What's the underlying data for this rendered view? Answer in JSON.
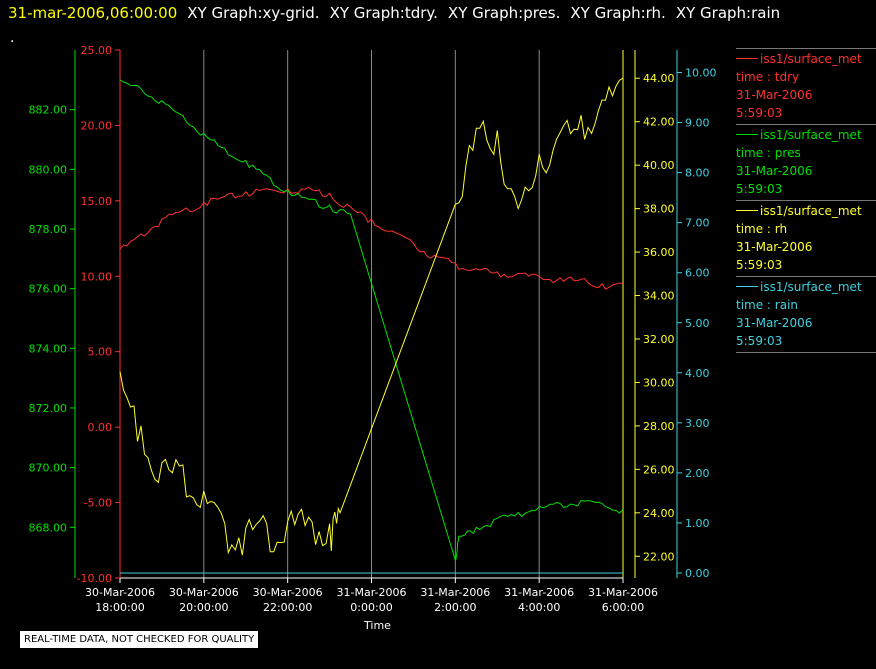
{
  "header": {
    "timestamp": "31-mar-2006,06:00:00",
    "graphs": [
      "XY Graph:xy-grid.",
      "XY Graph:tdry.",
      "XY Graph:pres.",
      "XY Graph:rh.",
      "XY Graph:rain"
    ],
    "second_line": "."
  },
  "legend": [
    {
      "name": "iss1/surface_met",
      "var": "time : tdry",
      "date": "31-Mar-2006",
      "time": "5:59:03",
      "color": "#ff3030"
    },
    {
      "name": "iss1/surface_met",
      "var": "time : pres",
      "date": "31-Mar-2006",
      "time": "5:59:03",
      "color": "#00e000"
    },
    {
      "name": "iss1/surface_met",
      "var": "time : rh",
      "date": "31-Mar-2006",
      "time": "5:59:03",
      "color": "#ffff30"
    },
    {
      "name": "iss1/surface_met",
      "var": "time : rain",
      "date": "31-Mar-2006",
      "time": "5:59:03",
      "color": "#40d0e0"
    }
  ],
  "disclaimer": "REAL-TIME DATA, NOT CHECKED FOR QUALITY",
  "chart_data": {
    "type": "line",
    "xlabel": "Time",
    "x_ticks": [
      {
        "date": "30-Mar-2006",
        "time": "18:00:00"
      },
      {
        "date": "30-Mar-2006",
        "time": "20:00:00"
      },
      {
        "date": "30-Mar-2006",
        "time": "22:00:00"
      },
      {
        "date": "31-Mar-2006",
        "time": "0:00:00"
      },
      {
        "date": "31-Mar-2006",
        "time": "2:00:00"
      },
      {
        "date": "31-Mar-2006",
        "time": "4:00:00"
      },
      {
        "date": "31-Mar-2006",
        "time": "6:00:00"
      }
    ],
    "xlim": [
      "30-Mar-2006 18:00:00",
      "31-Mar-2006 6:00:00"
    ],
    "grid": "vertical",
    "axes": [
      {
        "id": "pres",
        "color": "#00e000",
        "range": [
          866.3,
          884.0
        ],
        "ticks": [
          "868.00",
          "870.00",
          "872.00",
          "874.00",
          "876.00",
          "878.00",
          "880.00",
          "882.00"
        ],
        "tick_values": [
          868,
          870,
          872,
          874,
          876,
          878,
          880,
          882
        ]
      },
      {
        "id": "tdry",
        "color": "#ff3030",
        "range": [
          -10,
          25
        ],
        "ticks": [
          "-10.00",
          "-5.00",
          "0.00",
          "5.00",
          "10.00",
          "15.00",
          "20.00",
          "25.00"
        ],
        "tick_values": [
          -10,
          -5,
          0,
          5,
          10,
          15,
          20,
          25
        ]
      },
      {
        "id": "rh",
        "color": "#ffff30",
        "range": [
          21.0,
          45.3
        ],
        "ticks": [
          "22.00",
          "24.00",
          "26.00",
          "28.00",
          "30.00",
          "32.00",
          "34.00",
          "36.00",
          "38.00",
          "40.00",
          "42.00",
          "44.00"
        ],
        "tick_values": [
          22,
          24,
          26,
          28,
          30,
          32,
          34,
          36,
          38,
          40,
          42,
          44
        ]
      },
      {
        "id": "rain",
        "color": "#40d0e0",
        "range": [
          -0.1,
          10.45
        ],
        "ticks": [
          "0.00",
          "1.00",
          "2.00",
          "3.00",
          "4.00",
          "5.00",
          "6.00",
          "7.00",
          "8.00",
          "9.00",
          "10.00"
        ],
        "tick_values": [
          0,
          1,
          2,
          3,
          4,
          5,
          6,
          7,
          8,
          9,
          10
        ]
      }
    ],
    "series": [
      {
        "name": "time : tdry",
        "axis": "tdry",
        "color": "#ff3030",
        "x": [
          "30-Mar-2006 18:00",
          "30-Mar-2006 18:30",
          "30-Mar-2006 19:00",
          "30-Mar-2006 19:30",
          "30-Mar-2006 20:00",
          "30-Mar-2006 20:30",
          "30-Mar-2006 21:00",
          "30-Mar-2006 21:30",
          "30-Mar-2006 22:00",
          "30-Mar-2006 22:30",
          "30-Mar-2006 23:00",
          "30-Mar-2006 23:30",
          "31-Mar-2006 0:00",
          "31-Mar-2006 0:30",
          "31-Mar-2006 1:00",
          "31-Mar-2006 1:30",
          "31-Mar-2006 2:00",
          "31-Mar-2006 2:30",
          "31-Mar-2006 3:00",
          "31-Mar-2006 3:30",
          "31-Mar-2006 4:00",
          "31-Mar-2006 4:30",
          "31-Mar-2006 5:00",
          "31-Mar-2006 5:30",
          "31-Mar-2006 6:00"
        ],
        "values": [
          11.8,
          12.8,
          13.8,
          14.4,
          14.9,
          15.3,
          15.6,
          15.8,
          15.8,
          15.9,
          15.5,
          14.6,
          13.8,
          13.0,
          12.2,
          11.4,
          10.9,
          10.5,
          10.3,
          10.2,
          10.0,
          9.9,
          9.8,
          9.5,
          9.5
        ]
      },
      {
        "name": "time : pres",
        "axis": "pres",
        "color": "#00e000",
        "x": [
          "30-Mar-2006 18:00",
          "30-Mar-2006 18:30",
          "30-Mar-2006 19:00",
          "30-Mar-2006 19:30",
          "30-Mar-2006 20:00",
          "30-Mar-2006 20:30",
          "30-Mar-2006 21:00",
          "30-Mar-2006 21:30",
          "30-Mar-2006 22:00",
          "30-Mar-2006 22:30",
          "30-Mar-2006 23:00",
          "30-Mar-2006 23:30",
          "31-Mar-2006 2:00",
          "31-Mar-2006 2:05",
          "31-Mar-2006 2:30",
          "31-Mar-2006 3:00",
          "31-Mar-2006 3:30",
          "31-Mar-2006 4:00",
          "31-Mar-2006 4:30",
          "31-Mar-2006 5:00",
          "31-Mar-2006 5:30",
          "31-Mar-2006 6:00"
        ],
        "values": [
          883.0,
          882.7,
          882.3,
          881.8,
          881.2,
          880.7,
          880.3,
          879.8,
          879.3,
          879.0,
          878.8,
          878.5,
          866.9,
          867.7,
          868.0,
          868.3,
          868.5,
          868.7,
          868.8,
          868.9,
          868.8,
          868.6
        ]
      },
      {
        "name": "time : rh",
        "axis": "rh",
        "color": "#ffff30",
        "x": [
          "30-Mar-2006 18:00",
          "30-Mar-2006 18:30",
          "30-Mar-2006 19:00",
          "30-Mar-2006 19:30",
          "30-Mar-2006 20:00",
          "30-Mar-2006 20:30",
          "30-Mar-2006 21:00",
          "30-Mar-2006 21:30",
          "30-Mar-2006 22:00",
          "30-Mar-2006 22:30",
          "30-Mar-2006 23:00",
          "30-Mar-2006 23:15",
          "31-Mar-2006 2:00",
          "31-Mar-2006 2:30",
          "31-Mar-2006 3:00",
          "31-Mar-2006 3:30",
          "31-Mar-2006 4:00",
          "31-Mar-2006 4:30",
          "31-Mar-2006 5:00",
          "31-Mar-2006 5:30",
          "31-Mar-2006 6:00"
        ],
        "values": [
          30.5,
          28.0,
          26.3,
          26.2,
          25.0,
          23.5,
          23.3,
          23.5,
          23.6,
          23.8,
          23.5,
          24.0,
          38.2,
          41.7,
          41.6,
          38.0,
          40.5,
          41.5,
          42.3,
          43.0,
          44.0
        ]
      },
      {
        "name": "time : rain",
        "axis": "rain",
        "color": "#40d0e0",
        "x": [
          "30-Mar-2006 18:00",
          "31-Mar-2006 6:00"
        ],
        "values": [
          0.0,
          0.0
        ]
      }
    ]
  }
}
